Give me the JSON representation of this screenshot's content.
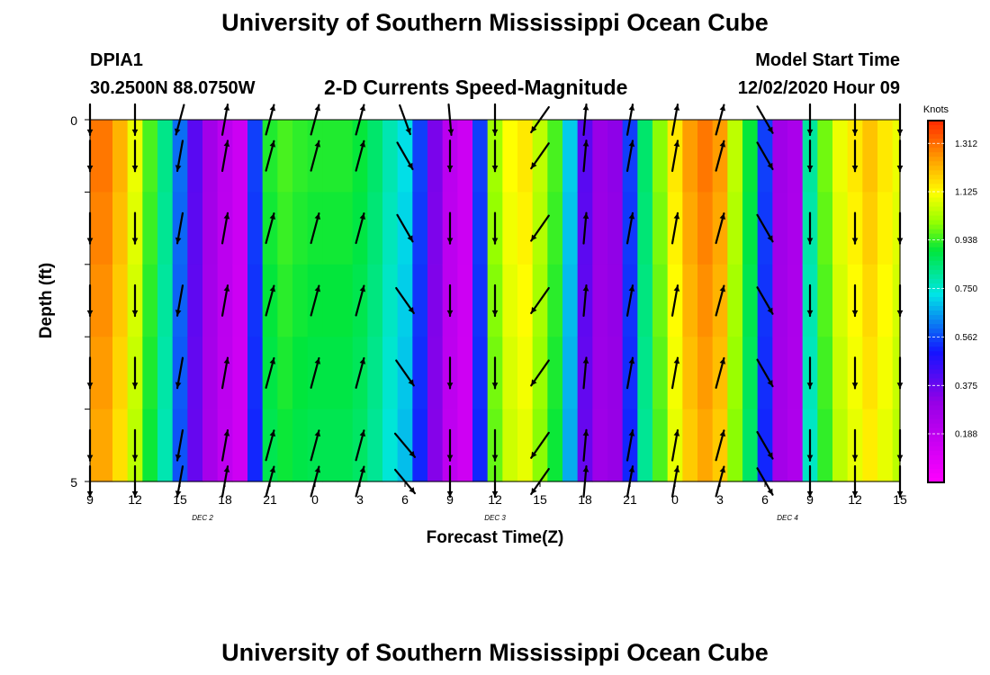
{
  "page": {
    "title_top": "University of Southern Mississippi Ocean Cube",
    "title_bottom": "University of Southern Mississippi Ocean Cube",
    "station": "DPIA1",
    "coords": "30.2500N 88.0750W",
    "plot_title": "2-D Currents Speed-Magnitude",
    "model_start_label": "Model Start Time",
    "model_start_value": "12/02/2020 Hour 09"
  },
  "chart_data": {
    "type": "heatmap",
    "title": "2-D Currents Speed-Magnitude",
    "xlabel": "Forecast Time(Z)",
    "ylabel": "Depth (ft)",
    "ylim": [
      0,
      5
    ],
    "y_ticks": [
      "0",
      "5"
    ],
    "x_ticks": [
      "9",
      "12",
      "15",
      "18",
      "21",
      "0",
      "3",
      "6",
      "9",
      "12",
      "15",
      "18",
      "21",
      "0",
      "3",
      "6",
      "9",
      "12",
      "15"
    ],
    "x_hours_offset": [
      0,
      3,
      6,
      9,
      12,
      15,
      18,
      21,
      24,
      27,
      30,
      33,
      36,
      39,
      42,
      45,
      48,
      51,
      54
    ],
    "date_labels": [
      {
        "label": "DEC 2",
        "hour_offset": 7.5
      },
      {
        "label": "DEC 3",
        "hour_offset": 27
      },
      {
        "label": "DEC 4",
        "hour_offset": 46.5
      }
    ],
    "colorbar": {
      "label": "Knots",
      "min": 0.0,
      "max": 1.4,
      "ticks": [
        "1.312",
        "1.125",
        "0.938",
        "0.750",
        "0.562",
        "0.375",
        "0.188"
      ]
    },
    "speed_knots_by_hour": [
      1.3,
      1.3,
      1.22,
      1.1,
      0.95,
      0.82,
      0.6,
      0.4,
      0.27,
      0.2,
      0.15,
      0.55,
      0.92,
      0.95,
      0.93,
      0.92,
      0.92,
      0.92,
      0.9,
      0.85,
      0.78,
      0.72,
      0.55,
      0.35,
      0.2,
      0.15,
      0.55,
      1.02,
      1.12,
      1.15,
      1.05,
      0.95,
      0.7,
      0.4,
      0.3,
      0.32,
      0.55,
      0.85,
      1.0,
      1.15,
      1.25,
      1.3,
      1.25,
      1.05,
      0.9,
      0.55,
      0.28,
      0.25,
      0.8,
      0.98,
      1.1,
      1.15,
      1.2,
      1.15,
      1.1
    ],
    "vector_columns": [
      {
        "hour": 0,
        "direction_deg": [
          180,
          180,
          180,
          180,
          180,
          180,
          180
        ]
      },
      {
        "hour": 3,
        "direction_deg": [
          180,
          180,
          180,
          180,
          180,
          180,
          180
        ]
      },
      {
        "hour": 6,
        "direction_deg": [
          195,
          190,
          190,
          190,
          190,
          190,
          190
        ]
      },
      {
        "hour": 9,
        "direction_deg": [
          10,
          10,
          10,
          10,
          10,
          10,
          10
        ]
      },
      {
        "hour": 12,
        "direction_deg": [
          15,
          15,
          15,
          15,
          15,
          15,
          15
        ]
      },
      {
        "hour": 15,
        "direction_deg": [
          15,
          15,
          15,
          15,
          15,
          15,
          15
        ]
      },
      {
        "hour": 18,
        "direction_deg": [
          15,
          15,
          15,
          15,
          15,
          15,
          15
        ]
      },
      {
        "hour": 21,
        "direction_deg": [
          160,
          150,
          150,
          145,
          145,
          140,
          140
        ]
      },
      {
        "hour": 24,
        "direction_deg": [
          175,
          180,
          180,
          180,
          180,
          180,
          180
        ]
      },
      {
        "hour": 27,
        "direction_deg": [
          180,
          180,
          180,
          180,
          180,
          180,
          180
        ]
      },
      {
        "hour": 30,
        "direction_deg": [
          215,
          215,
          215,
          215,
          215,
          215,
          215
        ]
      },
      {
        "hour": 33,
        "direction_deg": [
          5,
          5,
          5,
          5,
          5,
          5,
          5
        ]
      },
      {
        "hour": 36,
        "direction_deg": [
          10,
          10,
          10,
          10,
          10,
          10,
          10
        ]
      },
      {
        "hour": 39,
        "direction_deg": [
          10,
          10,
          10,
          10,
          10,
          10,
          10
        ]
      },
      {
        "hour": 42,
        "direction_deg": [
          15,
          15,
          15,
          15,
          15,
          15,
          15
        ]
      },
      {
        "hour": 45,
        "direction_deg": [
          150,
          150,
          150,
          150,
          150,
          150,
          150
        ]
      },
      {
        "hour": 48,
        "direction_deg": [
          180,
          180,
          180,
          180,
          180,
          180,
          180
        ]
      },
      {
        "hour": 51,
        "direction_deg": [
          180,
          180,
          180,
          180,
          180,
          180,
          180
        ]
      },
      {
        "hour": 54,
        "direction_deg": [
          180,
          180,
          180,
          180,
          180,
          180,
          180
        ]
      }
    ]
  }
}
